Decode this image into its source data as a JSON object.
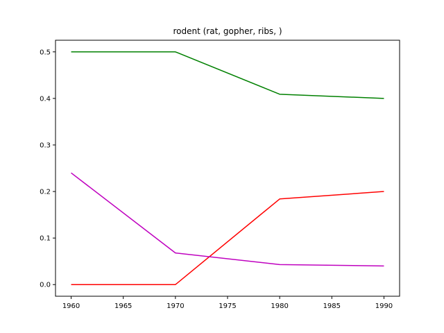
{
  "chart_data": {
    "type": "line",
    "title": "rodent (rat, gopher, ribs, )",
    "xlabel": "",
    "ylabel": "",
    "x": [
      1960,
      1970,
      1980,
      1990
    ],
    "xlim": [
      1958.5,
      1991.5
    ],
    "ylim": [
      -0.025,
      0.525
    ],
    "xticks": [
      1960,
      1965,
      1970,
      1975,
      1980,
      1985,
      1990
    ],
    "yticks": [
      0.0,
      0.1,
      0.2,
      0.3,
      0.4,
      0.5
    ],
    "ytick_labels": [
      "0.0",
      "0.1",
      "0.2",
      "0.3",
      "0.4",
      "0.5"
    ],
    "grid": false,
    "series": [
      {
        "color": "#008000",
        "values": [
          0.5,
          0.5,
          0.409,
          0.4
        ]
      },
      {
        "color": "#ff0000",
        "values": [
          0.0,
          0.0,
          0.184,
          0.2
        ]
      },
      {
        "color": "#bf00bf",
        "values": [
          0.24,
          0.068,
          0.043,
          0.04
        ]
      }
    ]
  }
}
